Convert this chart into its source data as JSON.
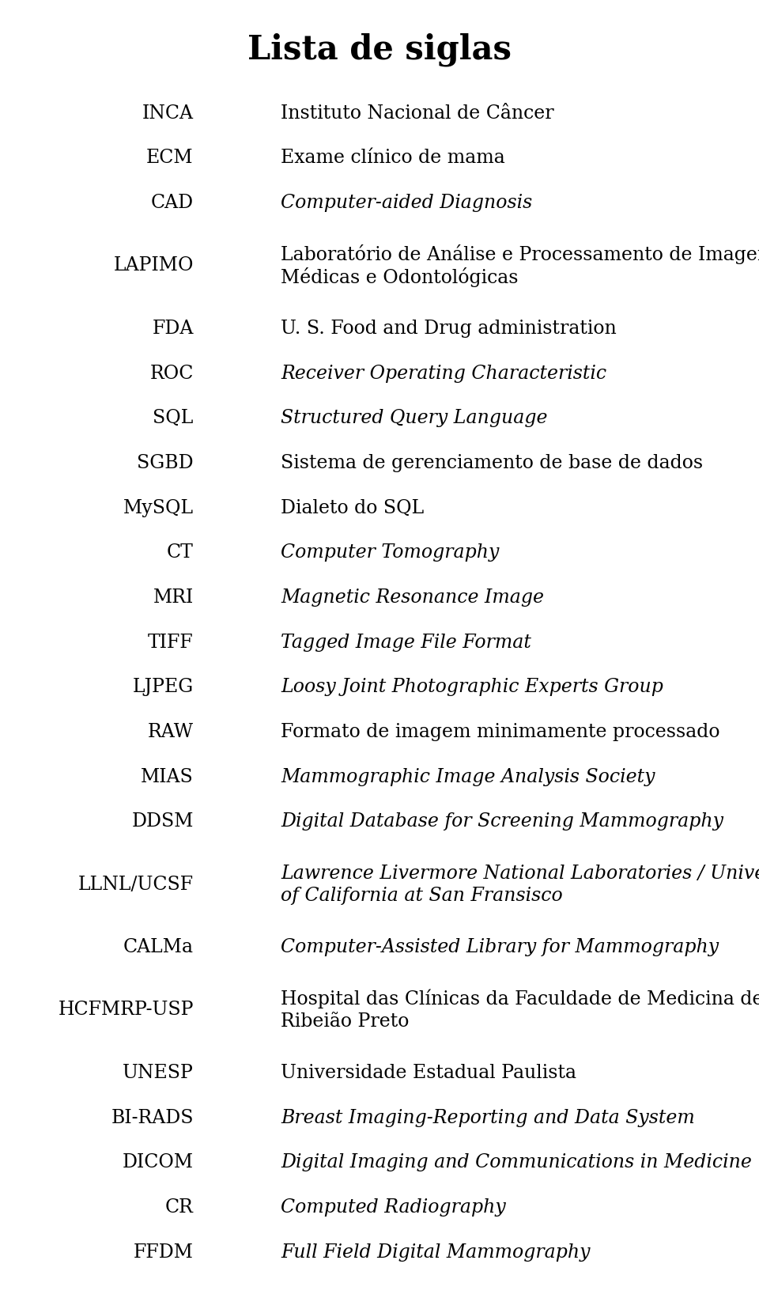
{
  "title": "Lista de siglas",
  "title_fontsize": 30,
  "title_fontweight": "bold",
  "background_color": "#ffffff",
  "text_color": "#000000",
  "acronym_fontsize": 17,
  "definition_fontsize": 17,
  "entries": [
    {
      "acronym": "INCA",
      "definition": "Instituto Nacional de Câncer",
      "italic": false,
      "lines": 1
    },
    {
      "acronym": "ECM",
      "definition": "Exame clínico de mama",
      "italic": false,
      "lines": 1
    },
    {
      "acronym": "CAD",
      "definition": "Computer-aided Diagnosis",
      "italic": true,
      "lines": 1
    },
    {
      "acronym": "LAPIMO",
      "definition": "Laboratório de Análise e Processamento de Imagens\nMédicas e Odontológicas",
      "italic": false,
      "lines": 2
    },
    {
      "acronym": "FDA",
      "definition": "U. S. Food and Drug administration",
      "italic": false,
      "lines": 1
    },
    {
      "acronym": "ROC",
      "definition": "Receiver Operating Characteristic",
      "italic": true,
      "lines": 1
    },
    {
      "acronym": "SQL",
      "definition": "Structured Query Language",
      "italic": true,
      "lines": 1
    },
    {
      "acronym": "SGBD",
      "definition": "Sistema de gerenciamento de base de dados",
      "italic": false,
      "lines": 1
    },
    {
      "acronym": "MySQL",
      "definition": "Dialeto do SQL",
      "italic": false,
      "lines": 1
    },
    {
      "acronym": "CT",
      "definition": "Computer Tomography",
      "italic": true,
      "lines": 1
    },
    {
      "acronym": "MRI",
      "definition": "Magnetic Resonance Image",
      "italic": true,
      "lines": 1
    },
    {
      "acronym": "TIFF",
      "definition": "Tagged Image File Format",
      "italic": true,
      "lines": 1
    },
    {
      "acronym": "LJPEG",
      "definition": "Loosy Joint Photographic Experts Group",
      "italic": true,
      "lines": 1
    },
    {
      "acronym": "RAW",
      "definition": "Formato de imagem minimamente processado",
      "italic": false,
      "lines": 1
    },
    {
      "acronym": "MIAS",
      "definition": "Mammographic Image Analysis Society",
      "italic": true,
      "lines": 1
    },
    {
      "acronym": "DDSM",
      "definition": "Digital Database for Screening Mammography",
      "italic": true,
      "lines": 1
    },
    {
      "acronym": "LLNL/UCSF",
      "definition": "Lawrence Livermore National Laboratories / University\nof California at San Fransisco",
      "italic": true,
      "lines": 2
    },
    {
      "acronym": "CALMa",
      "definition": "Computer-Assisted Library for Mammography",
      "italic": true,
      "lines": 1
    },
    {
      "acronym": "HCFMRP-USP",
      "definition": "Hospital das Clínicas da Faculdade de Medicina de\nRibeião Preto",
      "italic": false,
      "lines": 2
    },
    {
      "acronym": "UNESP",
      "definition": "Universidade Estadual Paulista",
      "italic": false,
      "lines": 1
    },
    {
      "acronym": "BI-RADS",
      "definition": "Breast Imaging-Reporting and Data System",
      "italic": true,
      "lines": 1
    },
    {
      "acronym": "DICOM",
      "definition": "Digital Imaging and Communications in Medicine",
      "italic": true,
      "lines": 1
    },
    {
      "acronym": "CR",
      "definition": "Computed Radiography",
      "italic": true,
      "lines": 1
    },
    {
      "acronym": "FFDM",
      "definition": "Full Field Digital Mammography",
      "italic": true,
      "lines": 1
    }
  ]
}
